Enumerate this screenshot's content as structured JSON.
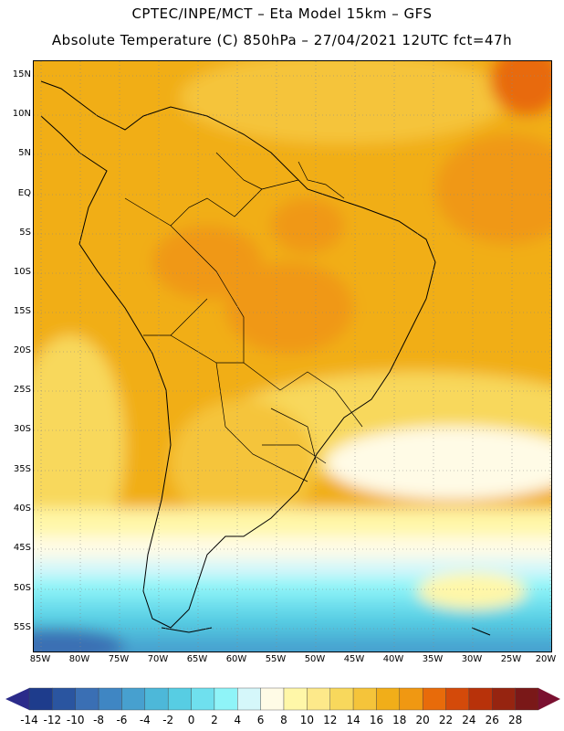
{
  "header": {
    "line1": "CPTEC/INPE/MCT –  Eta Model 15km – GFS",
    "line2": "Absolute Temperature (C) 850hPa – 27/04/2021 12UTC fct=47h"
  },
  "map": {
    "lat_labels": [
      "15N",
      "10N",
      "5N",
      "EQ",
      "5S",
      "10S",
      "15S",
      "20S",
      "25S",
      "30S",
      "35S",
      "40S",
      "45S",
      "50S",
      "55S"
    ],
    "lon_labels": [
      "85W",
      "80W",
      "75W",
      "70W",
      "65W",
      "60W",
      "55W",
      "50W",
      "45W",
      "40W",
      "35W",
      "30W",
      "25W",
      "20W"
    ],
    "grid": "dotted",
    "field": "temperature at 850hPa"
  },
  "colorbar": {
    "labels": [
      "-14",
      "-12",
      "-10",
      "-8",
      "-6",
      "-4",
      "-2",
      "0",
      "2",
      "4",
      "6",
      "8",
      "10",
      "12",
      "14",
      "16",
      "18",
      "20",
      "22",
      "24",
      "26",
      "28"
    ],
    "colors": [
      "#1e3c8c",
      "#2a55a0",
      "#3a6fb4",
      "#3f86c3",
      "#47a0cf",
      "#4db8d9",
      "#57cde3",
      "#6fe0ee",
      "#8ff4f8",
      "#d5f7fa",
      "#fffbe6",
      "#fff7a8",
      "#fde98a",
      "#f8d85c",
      "#f5c43a",
      "#f1ae19",
      "#f09812",
      "#e86b0a",
      "#d44a0a",
      "#b8320a",
      "#962410",
      "#7a1818"
    ],
    "under_color": "#2b2b8a",
    "over_color": "#7a1030"
  }
}
